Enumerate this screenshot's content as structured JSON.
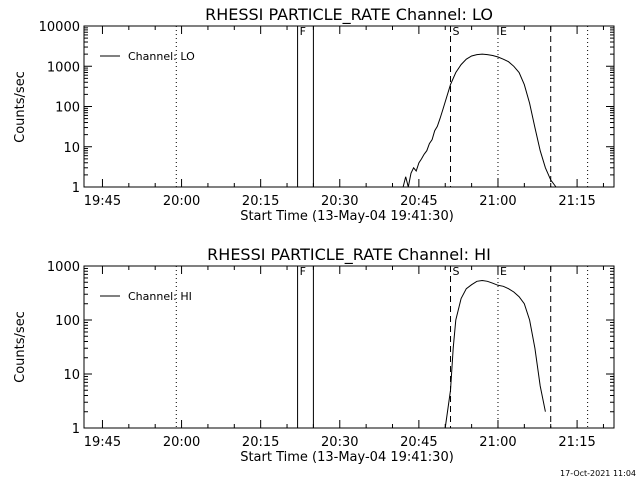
{
  "timestamp": "17-Oct-2021 11:04",
  "chart_data": [
    {
      "type": "line",
      "title": "RHESSI PARTICLE_RATE Channel: LO",
      "xlabel": "Start Time (13-May-04 19:41:30)",
      "ylabel": "Counts/sec",
      "yscale": "log",
      "xlim": [
        "19:41:30",
        "21:22:00"
      ],
      "ylim": [
        1,
        10000
      ],
      "x_ticks": [
        "19:45",
        "20:00",
        "20:15",
        "20:30",
        "20:45",
        "21:00",
        "21:15"
      ],
      "y_ticks": [
        "1",
        "10",
        "100",
        "1000",
        "10000"
      ],
      "legend": {
        "position": "top-left",
        "entries": [
          "Channel: LO"
        ]
      },
      "markers": [
        {
          "label": "F",
          "times": [
            "20:22:00",
            "20:25:00"
          ],
          "style": "solid"
        },
        {
          "label": "S",
          "times": [
            "20:51:00"
          ],
          "style": "dashed"
        },
        {
          "label": "E",
          "times": [
            "21:00:00"
          ],
          "style": "dotted"
        },
        {
          "label": "",
          "times": [
            "21:10:00"
          ],
          "style": "dashed"
        },
        {
          "label": "",
          "times": [
            "19:59:00",
            "21:17:00"
          ],
          "style": "dotted"
        }
      ],
      "series": [
        {
          "name": "Channel: LO",
          "x": [
            "20:42:00",
            "20:42:30",
            "20:43:00",
            "20:43:30",
            "20:44:00",
            "20:44:30",
            "20:45:00",
            "20:45:30",
            "20:46:00",
            "20:46:30",
            "20:47:00",
            "20:47:30",
            "20:48:00",
            "20:48:30",
            "20:49:00",
            "20:49:30",
            "20:50:00",
            "20:51:00",
            "20:52:00",
            "20:53:00",
            "20:54:00",
            "20:55:00",
            "20:56:00",
            "20:57:00",
            "20:58:00",
            "20:59:00",
            "21:00:00",
            "21:01:00",
            "21:02:00",
            "21:03:00",
            "21:04:00",
            "21:05:00",
            "21:06:00",
            "21:07:00",
            "21:08:00",
            "21:09:00",
            "21:10:00",
            "21:11:00"
          ],
          "values": [
            1,
            1.8,
            1,
            2.2,
            3,
            2.5,
            4,
            5,
            6.5,
            8,
            12,
            15,
            25,
            32,
            50,
            80,
            130,
            350,
            700,
            1100,
            1500,
            1800,
            1950,
            2000,
            1950,
            1850,
            1700,
            1500,
            1300,
            1000,
            700,
            350,
            120,
            30,
            8,
            3,
            1.5,
            1
          ]
        }
      ]
    },
    {
      "type": "line",
      "title": "RHESSI PARTICLE_RATE Channel: HI",
      "xlabel": "Start Time (13-May-04 19:41:30)",
      "ylabel": "Counts/sec",
      "yscale": "log",
      "xlim": [
        "19:41:30",
        "21:22:00"
      ],
      "ylim": [
        1,
        1000
      ],
      "x_ticks": [
        "19:45",
        "20:00",
        "20:15",
        "20:30",
        "20:45",
        "21:00",
        "21:15"
      ],
      "y_ticks": [
        "1",
        "10",
        "100",
        "1000"
      ],
      "legend": {
        "position": "top-left",
        "entries": [
          "Channel: HI"
        ]
      },
      "markers": [
        {
          "label": "F",
          "times": [
            "20:22:00",
            "20:25:00"
          ],
          "style": "solid"
        },
        {
          "label": "S",
          "times": [
            "20:51:00"
          ],
          "style": "dashed"
        },
        {
          "label": "E",
          "times": [
            "21:00:00"
          ],
          "style": "dotted"
        },
        {
          "label": "",
          "times": [
            "21:10:00"
          ],
          "style": "dashed"
        },
        {
          "label": "",
          "times": [
            "19:59:00",
            "21:17:00"
          ],
          "style": "dotted"
        }
      ],
      "series": [
        {
          "name": "Channel: HI",
          "x": [
            "20:50:00",
            "20:51:00",
            "20:51:30",
            "20:52:00",
            "20:53:00",
            "20:54:00",
            "20:55:00",
            "20:56:00",
            "20:57:00",
            "20:58:00",
            "20:59:00",
            "21:00:00",
            "21:01:00",
            "21:02:00",
            "21:03:00",
            "21:04:00",
            "21:05:00",
            "21:06:00",
            "21:07:00",
            "21:08:00",
            "21:09:00"
          ],
          "values": [
            1,
            5,
            30,
            100,
            250,
            380,
            450,
            520,
            540,
            520,
            480,
            440,
            420,
            380,
            330,
            270,
            200,
            100,
            30,
            6,
            2
          ]
        }
      ]
    }
  ]
}
